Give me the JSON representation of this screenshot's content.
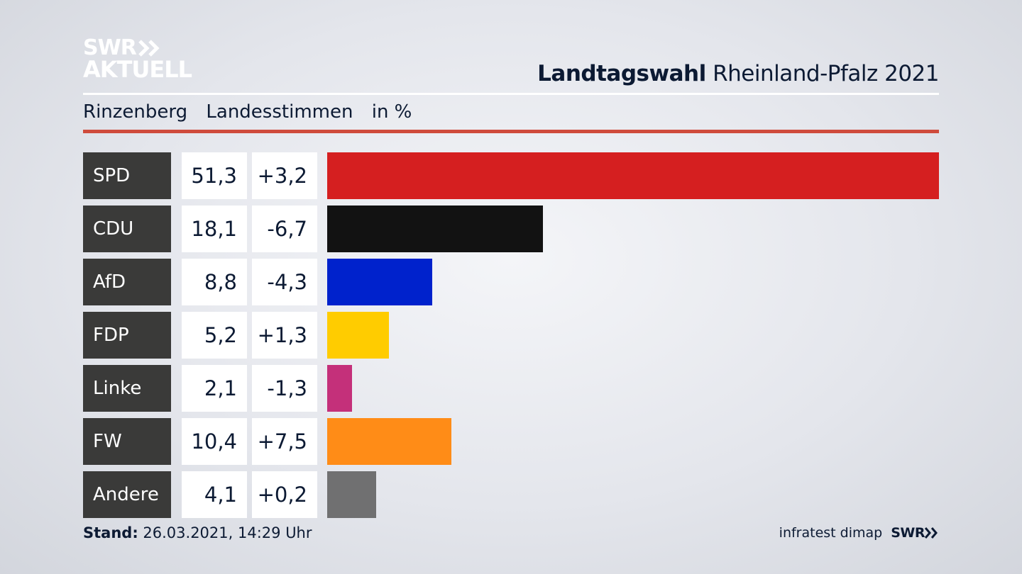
{
  "logo": {
    "line1": "SWR",
    "line2": "AKTUELL"
  },
  "header": {
    "title_bold": "Landtagswahl",
    "title_rest": "Rheinland-Pfalz 2021"
  },
  "subheader": {
    "place": "Rinzenberg",
    "measure": "Landesstimmen",
    "unit": "in %"
  },
  "footer": {
    "stand_label": "Stand:",
    "stand_value": "26.03.2021, 14:29 Uhr",
    "source": "infratest dimap",
    "brand": "SWR"
  },
  "chart_data": {
    "type": "bar",
    "orientation": "horizontal",
    "categories": [
      "SPD",
      "CDU",
      "AfD",
      "FDP",
      "Linke",
      "FW",
      "Andere"
    ],
    "values": [
      51.3,
      18.1,
      8.8,
      5.2,
      2.1,
      10.4,
      4.1
    ],
    "value_labels": [
      "51,3",
      "18,1",
      "8,8",
      "5,2",
      "2,1",
      "10,4",
      "4,1"
    ],
    "change_labels": [
      "+3,2",
      "-6,7",
      "-4,3",
      "+1,3",
      "-1,3",
      "+7,5",
      "+0,2"
    ],
    "colors": [
      "#d51f20",
      "#121212",
      "#0022cc",
      "#ffcc00",
      "#c4307a",
      "#ff8c17",
      "#707071"
    ],
    "xlim": [
      0,
      51.3
    ]
  }
}
